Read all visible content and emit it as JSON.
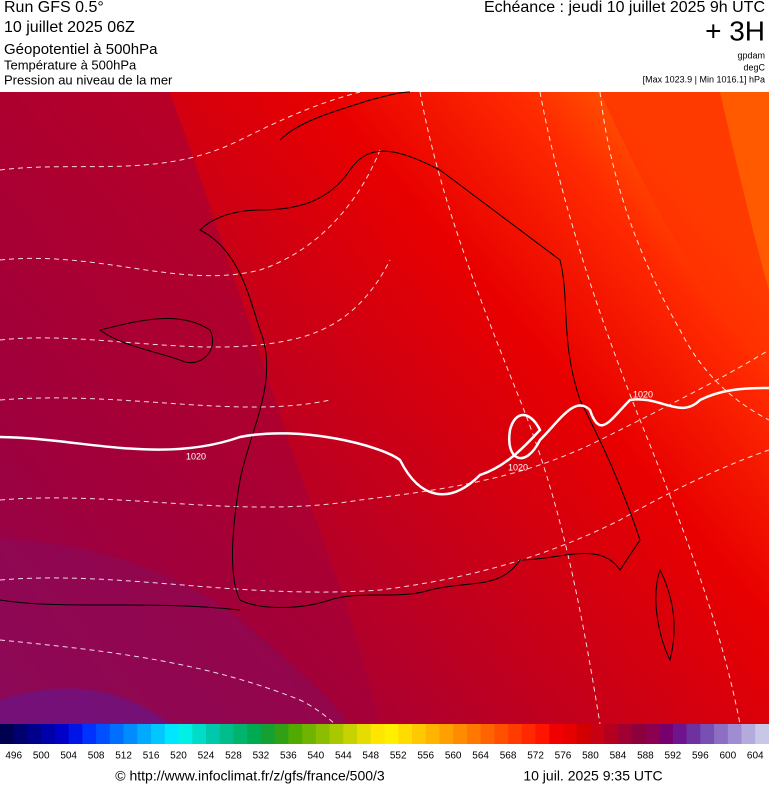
{
  "header": {
    "run": "Run GFS 0.5°",
    "date": "10 juillet 2025 06Z",
    "field1": "Géopotentiel à 500hPa",
    "field2": "Température à 500hPa",
    "field3": "Pression au niveau de la mer",
    "echeance": "Echéance : jeudi 10 juillet 2025 9h UTC",
    "offset": "+ 3H",
    "unit1": "gpdam",
    "unit2": "degC",
    "range": "[Max 1023.9 | Min 1016.1] hPa"
  },
  "map": {
    "isobar_labels": [
      "1020",
      "1020",
      "1020"
    ]
  },
  "legend": {
    "labels": [
      "496",
      "500",
      "504",
      "508",
      "512",
      "516",
      "520",
      "524",
      "528",
      "532",
      "536",
      "540",
      "544",
      "548",
      "552",
      "556",
      "560",
      "564",
      "568",
      "572",
      "576",
      "580",
      "584",
      "588",
      "592",
      "596",
      "600",
      "604"
    ],
    "colors": [
      "#000050",
      "#00006e",
      "#00008c",
      "#0000aa",
      "#0000c8",
      "#0014e6",
      "#0032ff",
      "#0050ff",
      "#006eff",
      "#008cff",
      "#00aaff",
      "#00c8ff",
      "#00e6ff",
      "#00f0e6",
      "#00dcc8",
      "#00c8aa",
      "#00be8c",
      "#00b46e",
      "#00aa50",
      "#14a032",
      "#32a014",
      "#50aa00",
      "#6eb400",
      "#8cbe00",
      "#aac800",
      "#c8d200",
      "#e6dc00",
      "#ffe600",
      "#fff000",
      "#ffdc00",
      "#ffc800",
      "#ffb400",
      "#ffa000",
      "#ff8c00",
      "#ff7800",
      "#ff6400",
      "#ff5000",
      "#ff3c00",
      "#ff2800",
      "#ff1400",
      "#f00000",
      "#e60000",
      "#d20000",
      "#c80014",
      "#b4001e",
      "#a00032",
      "#8c003c",
      "#8c0050",
      "#78006e",
      "#6e148c",
      "#6e32a0",
      "#7850b4",
      "#8c6ec3",
      "#a08cd2",
      "#b4aadc",
      "#c8c8e6"
    ]
  },
  "footer": {
    "source": "© http://www.infoclimat.fr/z/gfs/france/500/3",
    "timestamp": "10 juil. 2025  9:35 UTC"
  }
}
